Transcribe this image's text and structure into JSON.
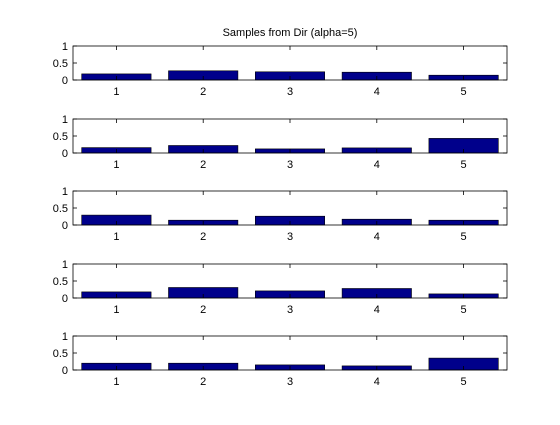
{
  "title": "Samples from Dir (alpha=5)",
  "colors": {
    "bar_fill": "#00008B",
    "bar_edge": "#000000",
    "axis": "#000000",
    "background": "#ffffff"
  },
  "chart_data": [
    {
      "type": "bar",
      "title": "Samples from Dir (alpha=5)",
      "categories": [
        "1",
        "2",
        "3",
        "4",
        "5"
      ],
      "values": [
        0.18,
        0.27,
        0.24,
        0.23,
        0.14
      ],
      "ylim": [
        0,
        1
      ],
      "yticks": [
        "0",
        "0.5",
        "1"
      ],
      "grid": false
    },
    {
      "type": "bar",
      "categories": [
        "1",
        "2",
        "3",
        "4",
        "5"
      ],
      "values": [
        0.16,
        0.22,
        0.12,
        0.15,
        0.43
      ],
      "ylim": [
        0,
        1
      ],
      "yticks": [
        "0",
        "0.5",
        "1"
      ],
      "grid": false
    },
    {
      "type": "bar",
      "categories": [
        "1",
        "2",
        "3",
        "4",
        "5"
      ],
      "values": [
        0.29,
        0.14,
        0.26,
        0.17,
        0.14
      ],
      "ylim": [
        0,
        1
      ],
      "yticks": [
        "0",
        "0.5",
        "1"
      ],
      "grid": false
    },
    {
      "type": "bar",
      "categories": [
        "1",
        "2",
        "3",
        "4",
        "5"
      ],
      "values": [
        0.18,
        0.31,
        0.21,
        0.28,
        0.12
      ],
      "ylim": [
        0,
        1
      ],
      "yticks": [
        "0",
        "0.5",
        "1"
      ],
      "grid": false
    },
    {
      "type": "bar",
      "categories": [
        "1",
        "2",
        "3",
        "4",
        "5"
      ],
      "values": [
        0.2,
        0.2,
        0.15,
        0.12,
        0.35
      ],
      "ylim": [
        0,
        1
      ],
      "yticks": [
        "0",
        "0.5",
        "1"
      ],
      "grid": false
    }
  ]
}
